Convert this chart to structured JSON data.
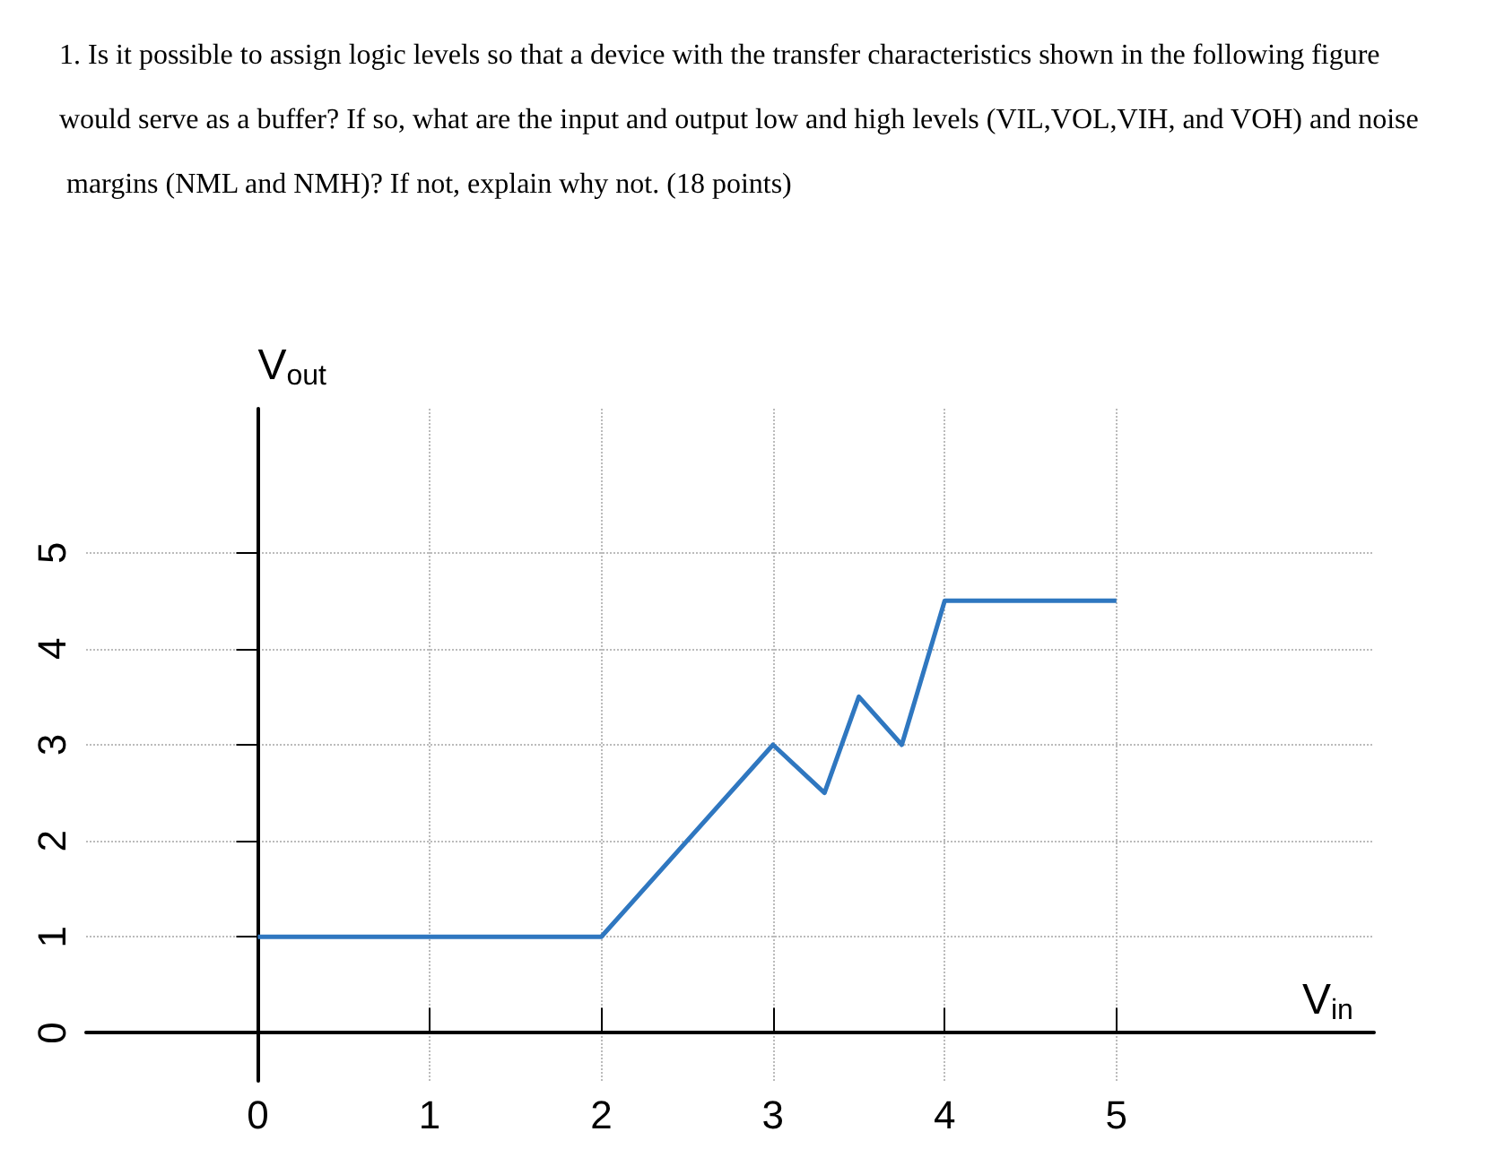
{
  "chart_data": {
    "type": "line",
    "title": "1. Is it possible to assign logic levels so that a device with the transfer characteristics shown in the following figure would serve as a buffer? If so, what are the input and output low and high levels (VIL,VOL,VIH, and VOH) and noise margins (NML and NMH)? If not, explain why not. (18 points)",
    "xlabel": "V$_{in}$",
    "ylabel": "V$_{out}$",
    "x": [
      0,
      2,
      3,
      3.3,
      3.5,
      3.75,
      4,
      5
    ],
    "series": [
      {
        "color": "#2f77c0",
        "values": [
          1,
          1,
          3,
          2.5,
          3.5,
          3,
          4.5,
          4.5
        ]
      }
    ],
    "xlim": [
      -1,
      6.5
    ],
    "ylim": [
      -0.5,
      6.5
    ],
    "xticks": [
      0,
      1,
      2,
      3,
      4,
      5
    ],
    "yticks": [
      0,
      1,
      2,
      3,
      4,
      5
    ],
    "grid": true,
    "marker": "none",
    "line_style": "solid"
  }
}
